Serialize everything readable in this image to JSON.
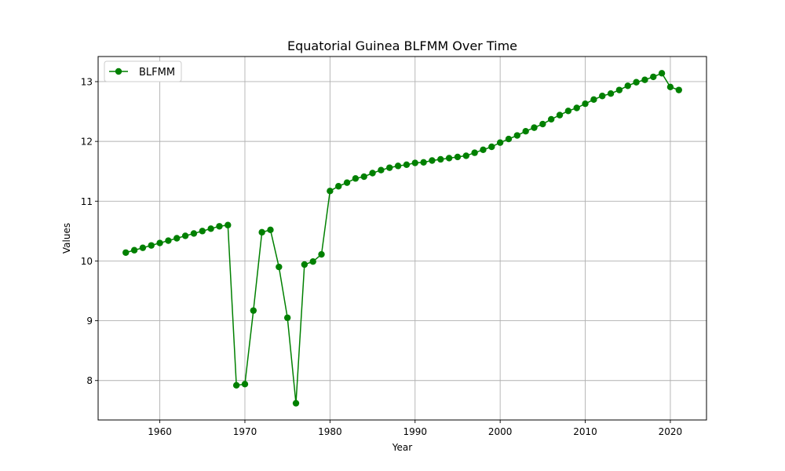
{
  "chart_data": {
    "type": "line",
    "title": "Equatorial Guinea BLFMM Over Time",
    "xlabel": "Year",
    "ylabel": "Values",
    "xlim": [
      1952.75,
      2024.25
    ],
    "ylim": [
      7.34,
      13.42
    ],
    "xticks": [
      1960,
      1970,
      1980,
      1990,
      2000,
      2010,
      2020
    ],
    "yticks": [
      8,
      9,
      10,
      11,
      12,
      13
    ],
    "grid": true,
    "legend_position": "top-left",
    "series": [
      {
        "name": "BLFMM",
        "color": "#008000",
        "marker": "circle",
        "x": [
          1956,
          1957,
          1958,
          1959,
          1960,
          1961,
          1962,
          1963,
          1964,
          1965,
          1966,
          1967,
          1968,
          1969,
          1970,
          1971,
          1972,
          1973,
          1974,
          1975,
          1976,
          1977,
          1978,
          1979,
          1980,
          1981,
          1982,
          1983,
          1984,
          1985,
          1986,
          1987,
          1988,
          1989,
          1990,
          1991,
          1992,
          1993,
          1994,
          1995,
          1996,
          1997,
          1998,
          1999,
          2000,
          2001,
          2002,
          2003,
          2004,
          2005,
          2006,
          2007,
          2008,
          2009,
          2010,
          2011,
          2012,
          2013,
          2014,
          2015,
          2016,
          2017,
          2018,
          2019,
          2020,
          2021
        ],
        "y": [
          10.14,
          10.18,
          10.22,
          10.26,
          10.3,
          10.34,
          10.38,
          10.42,
          10.46,
          10.5,
          10.54,
          10.58,
          10.6,
          7.92,
          7.94,
          9.17,
          10.48,
          10.52,
          9.9,
          9.05,
          7.62,
          9.94,
          9.99,
          10.11,
          11.17,
          11.25,
          11.31,
          11.38,
          11.41,
          11.47,
          11.52,
          11.56,
          11.59,
          11.61,
          11.64,
          11.65,
          11.68,
          11.7,
          11.72,
          11.74,
          11.76,
          11.81,
          11.86,
          11.91,
          11.98,
          12.04,
          12.1,
          12.17,
          12.23,
          12.29,
          12.37,
          12.44,
          12.51,
          12.56,
          12.63,
          12.7,
          12.76,
          12.8,
          12.86,
          12.93,
          12.99,
          13.03,
          13.08,
          13.14,
          12.91,
          12.86
        ]
      }
    ]
  }
}
